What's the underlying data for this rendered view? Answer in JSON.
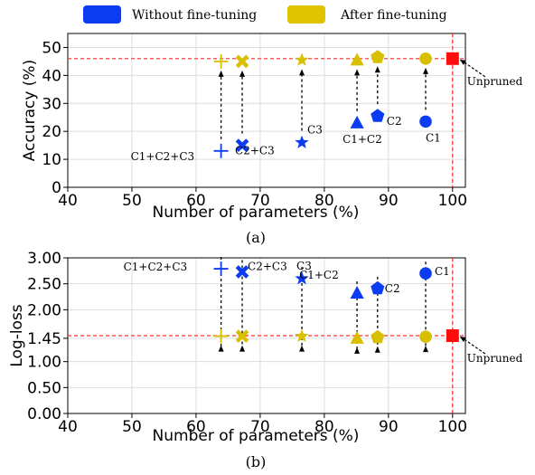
{
  "legend": {
    "items": [
      {
        "label": "Without fine-tuning",
        "color": "#0b3cf2"
      },
      {
        "label": "After fine-tuning",
        "color": "#e0c400"
      }
    ]
  },
  "colors": {
    "without": "#0b3cf2",
    "after": "#d8bf00",
    "unpruned": "#ff0d0d",
    "reference_line": "#ff2a2a"
  },
  "chart_data": [
    {
      "type": "scatter",
      "caption": "(a)",
      "xlabel": "Number of parameters (%)",
      "ylabel": "Accuracy (%)",
      "xlim": [
        40,
        102
      ],
      "ylim": [
        0,
        55
      ],
      "xticks": [
        40,
        50,
        60,
        70,
        80,
        90,
        100
      ],
      "xtick_labels": [
        "40",
        "50",
        "60",
        "70",
        "80",
        "90",
        "100"
      ],
      "yticks": [
        0,
        10,
        20,
        30,
        40,
        50
      ],
      "ytick_labels": [
        "0",
        "10",
        "20",
        "30",
        "40",
        "50"
      ],
      "grid": true,
      "reference_lines": {
        "x": 100,
        "y": 46
      },
      "points": [
        {
          "label": "C1+C2+C3",
          "marker": "plus",
          "x": 63.9,
          "without": 13,
          "after": 45
        },
        {
          "label": "C2+C3",
          "marker": "x",
          "x": 67.2,
          "without": 15,
          "after": 45
        },
        {
          "label": "C3",
          "marker": "star",
          "x": 76.5,
          "without": 16,
          "after": 45.5
        },
        {
          "label": "C1+C2",
          "marker": "triangle",
          "x": 85.1,
          "without": 23,
          "after": 45.5
        },
        {
          "label": "C2",
          "marker": "pentagon",
          "x": 88.3,
          "without": 25.5,
          "after": 46.5
        },
        {
          "label": "C1",
          "marker": "circle",
          "x": 95.8,
          "without": 23.5,
          "after": 46
        }
      ],
      "unpruned": {
        "label": "Unpruned",
        "x": 100,
        "y": 46,
        "marker": "square"
      }
    },
    {
      "type": "scatter",
      "caption": "(b)",
      "xlabel": "Number of parameters (%)",
      "ylabel": "Log-loss",
      "xlim": [
        40,
        102
      ],
      "ylim": [
        0,
        3.0
      ],
      "xticks": [
        40,
        50,
        60,
        70,
        80,
        90,
        100
      ],
      "xtick_labels": [
        "40",
        "50",
        "60",
        "70",
        "80",
        "90",
        "100"
      ],
      "yticks": [
        0,
        0.5,
        1.0,
        1.45,
        2.0,
        2.5,
        3.0
      ],
      "ytick_labels": [
        "0.00",
        "0.50",
        "1.00",
        "1.45",
        "2.00",
        "2.50",
        "3.00"
      ],
      "grid": true,
      "reference_lines": {
        "x": 100,
        "y": 1.5
      },
      "points": [
        {
          "label": "C1+C2+C3",
          "marker": "plus",
          "x": 63.9,
          "without": 2.79,
          "after": 1.49
        },
        {
          "label": "C2+C3",
          "marker": "x",
          "x": 67.2,
          "without": 2.73,
          "after": 1.49
        },
        {
          "label": "C3",
          "marker": "star",
          "x": 76.5,
          "without": 2.6,
          "after": 1.49
        },
        {
          "label": "C1+C2",
          "marker": "triangle",
          "x": 85.1,
          "without": 2.32,
          "after": 1.45
        },
        {
          "label": "C2",
          "marker": "pentagon",
          "x": 88.3,
          "without": 2.41,
          "after": 1.47
        },
        {
          "label": "C1",
          "marker": "circle",
          "x": 95.8,
          "without": 2.7,
          "after": 1.48
        }
      ],
      "unpruned": {
        "label": "Unpruned",
        "x": 100,
        "y": 1.5,
        "marker": "square"
      }
    }
  ]
}
